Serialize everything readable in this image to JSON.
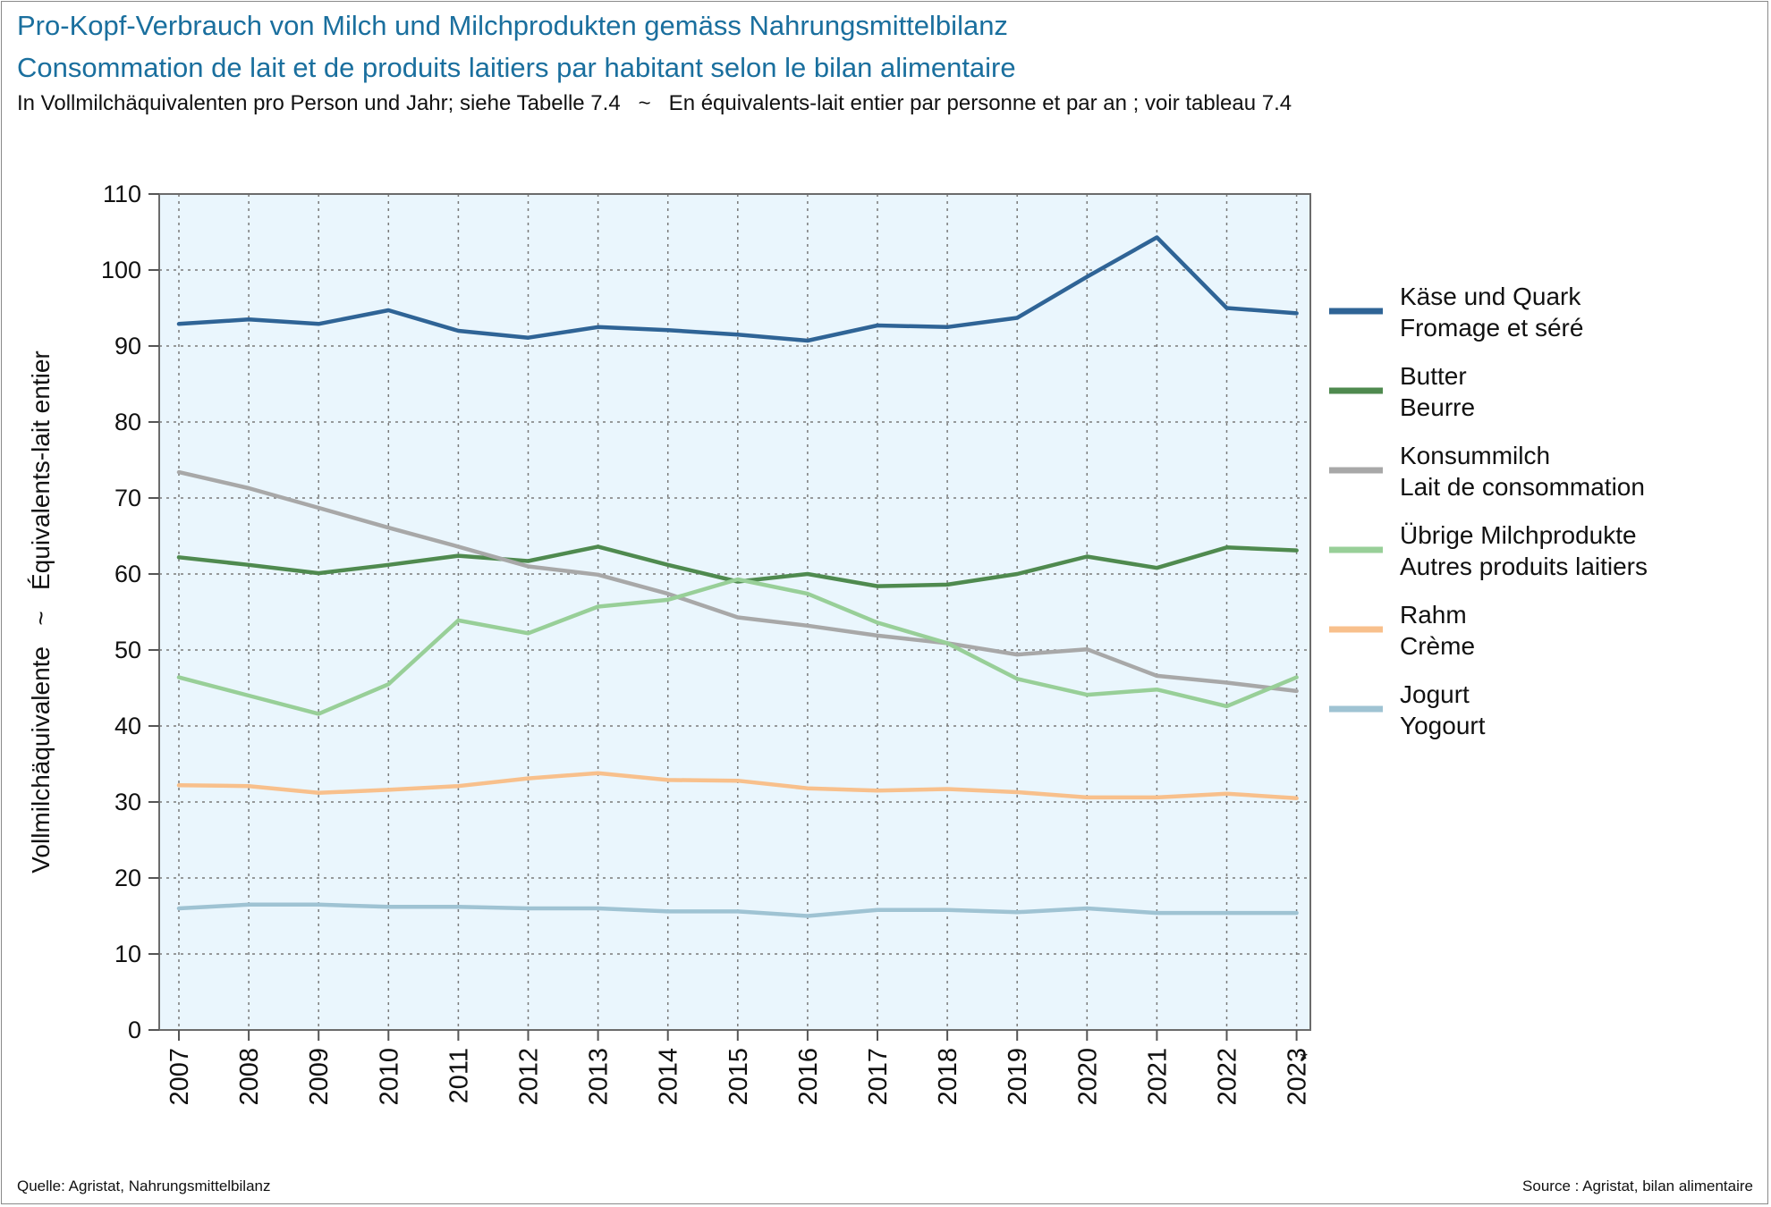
{
  "header": {
    "title_de": "Pro-Kopf-Verbrauch von Milch und Milchprodukten gemäss Nahrungsmittelbilanz",
    "title_fr": "Consommation de lait et de produits laitiers par habitant selon le bilan alimentaire",
    "subtitle": "In Vollmilchäquivalenten pro Person und Jahr; siehe Tabelle 7.4   ~   En équivalents-lait entier par personne et par an ; voir tableau 7.4"
  },
  "footer": {
    "source_de": "Quelle: Agristat, Nahrungsmittelbilanz",
    "source_fr": "Source : Agristat, bilan alimentaire"
  },
  "chart_data": {
    "type": "line",
    "ylabel": "Vollmilchäquivalente   ~   Équivalents-lait entier",
    "ylim": [
      0,
      110
    ],
    "yticks": [
      0,
      10,
      20,
      30,
      40,
      50,
      60,
      70,
      80,
      90,
      100,
      110
    ],
    "x": [
      "2007",
      "2008",
      "2009",
      "2010",
      "2011",
      "2012",
      "2013",
      "2014",
      "2015",
      "2016",
      "2017",
      "2018",
      "2019",
      "2020",
      "2021",
      "2022",
      "2023"
    ],
    "x_annotations": [
      {
        "x": "2023",
        "text": "*"
      }
    ],
    "grid": true,
    "plot_background": "#eaf6fd",
    "legend_position": "right",
    "series": [
      {
        "name_de": "Käse und Quark",
        "name_fr": "Fromage et séré",
        "color": "#2f6496",
        "values": [
          92.9,
          93.5,
          92.9,
          94.7,
          92.0,
          91.1,
          92.5,
          92.1,
          91.5,
          90.7,
          92.7,
          92.5,
          93.7,
          99.1,
          104.3,
          95.0,
          94.3
        ]
      },
      {
        "name_de": "Butter",
        "name_fr": "Beurre",
        "color": "#4f8a4f",
        "values": [
          62.2,
          61.2,
          60.1,
          61.2,
          62.4,
          61.7,
          63.6,
          61.2,
          59.0,
          60.0,
          58.4,
          58.6,
          60.0,
          62.3,
          60.8,
          63.5,
          63.1
        ]
      },
      {
        "name_de": "Konsummilch",
        "name_fr": "Lait de consommation",
        "color": "#a8a8a8",
        "values": [
          73.4,
          71.3,
          68.7,
          66.1,
          63.6,
          61.0,
          59.9,
          57.4,
          54.3,
          53.2,
          51.9,
          50.9,
          49.4,
          50.1,
          46.6,
          45.7,
          44.6
        ]
      },
      {
        "name_de": "Übrige Milchprodukte",
        "name_fr": "Autres produits laitiers",
        "color": "#98cf98",
        "values": [
          46.4,
          44.0,
          41.6,
          45.5,
          53.9,
          52.2,
          55.7,
          56.6,
          59.3,
          57.4,
          53.6,
          50.9,
          46.2,
          44.1,
          44.8,
          42.6,
          46.4
        ]
      },
      {
        "name_de": "Rahm",
        "name_fr": "Crème",
        "color": "#f8c08c",
        "values": [
          32.2,
          32.1,
          31.2,
          31.6,
          32.1,
          33.1,
          33.8,
          32.9,
          32.8,
          31.8,
          31.5,
          31.7,
          31.3,
          30.6,
          30.6,
          31.1,
          30.5
        ]
      },
      {
        "name_de": "Jogurt",
        "name_fr": "Yogourt",
        "color": "#9fc3d3",
        "values": [
          16.0,
          16.5,
          16.5,
          16.2,
          16.2,
          16.0,
          16.0,
          15.6,
          15.6,
          15.0,
          15.8,
          15.8,
          15.5,
          16.0,
          15.4,
          15.4,
          15.4
        ]
      }
    ]
  }
}
